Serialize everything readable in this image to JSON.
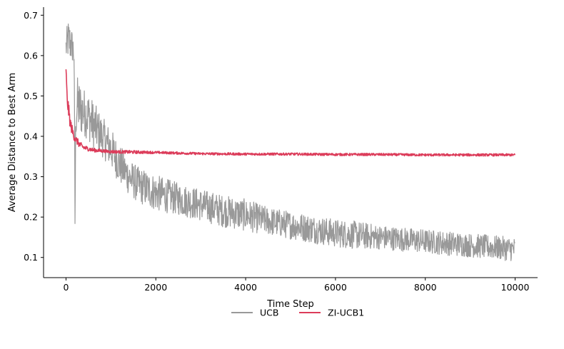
{
  "chart_data": {
    "type": "line",
    "title": "",
    "xlabel": "Time Step",
    "ylabel": "Average Distance to Best Arm",
    "xlim": [
      -500,
      10500
    ],
    "ylim": [
      0.05,
      0.72
    ],
    "xticks": [
      0,
      2000,
      4000,
      6000,
      8000,
      10000
    ],
    "xtick_labels": [
      "0",
      "2000",
      "4000",
      "6000",
      "8000",
      "10000"
    ],
    "yticks": [
      0.1,
      0.2,
      0.3,
      0.4,
      0.5,
      0.6,
      0.7
    ],
    "ytick_labels": [
      "0.1",
      "0.2",
      "0.3",
      "0.4",
      "0.5",
      "0.6",
      "0.7"
    ],
    "grid": false,
    "legend_position": "bottom-center",
    "series": [
      {
        "name": "UCB",
        "color": "#999999",
        "x": [
          0,
          50,
          100,
          150,
          180,
          200,
          220,
          250,
          300,
          400,
          500,
          600,
          800,
          1000,
          1200,
          1400,
          1600,
          1800,
          2000,
          2500,
          3000,
          3500,
          4000,
          4500,
          5000,
          5500,
          6000,
          6500,
          7000,
          7500,
          8000,
          8500,
          9000,
          9500,
          10000
        ],
        "y": [
          0.62,
          0.64,
          0.63,
          0.62,
          0.6,
          0.2,
          0.45,
          0.48,
          0.47,
          0.46,
          0.45,
          0.43,
          0.4,
          0.37,
          0.33,
          0.3,
          0.28,
          0.27,
          0.26,
          0.245,
          0.23,
          0.215,
          0.205,
          0.19,
          0.18,
          0.17,
          0.16,
          0.155,
          0.15,
          0.145,
          0.14,
          0.135,
          0.13,
          0.125,
          0.12
        ],
        "noise_amplitude": [
          0.04,
          0.05,
          0.05,
          0.04,
          0.04,
          0.1,
          0.06,
          0.07,
          0.07,
          0.06,
          0.06,
          0.06,
          0.05,
          0.05,
          0.05,
          0.045,
          0.045,
          0.045,
          0.045,
          0.04,
          0.04,
          0.04,
          0.04,
          0.035,
          0.035,
          0.035,
          0.035,
          0.035,
          0.03,
          0.03,
          0.03,
          0.03,
          0.03,
          0.03,
          0.03
        ]
      },
      {
        "name": "ZI-UCB1",
        "color": "#dc3c5a",
        "x": [
          0,
          20,
          50,
          100,
          150,
          200,
          300,
          400,
          600,
          800,
          1000,
          1500,
          2000,
          3000,
          4000,
          5000,
          6000,
          7000,
          8000,
          9000,
          10000
        ],
        "y": [
          0.57,
          0.5,
          0.47,
          0.43,
          0.41,
          0.395,
          0.38,
          0.372,
          0.366,
          0.364,
          0.362,
          0.361,
          0.36,
          0.357,
          0.356,
          0.356,
          0.355,
          0.355,
          0.354,
          0.354,
          0.354
        ],
        "noise_amplitude": [
          0.01,
          0.02,
          0.02,
          0.015,
          0.012,
          0.01,
          0.008,
          0.006,
          0.005,
          0.004,
          0.004,
          0.004,
          0.003,
          0.003,
          0.003,
          0.003,
          0.003,
          0.003,
          0.003,
          0.003,
          0.003
        ]
      }
    ]
  }
}
